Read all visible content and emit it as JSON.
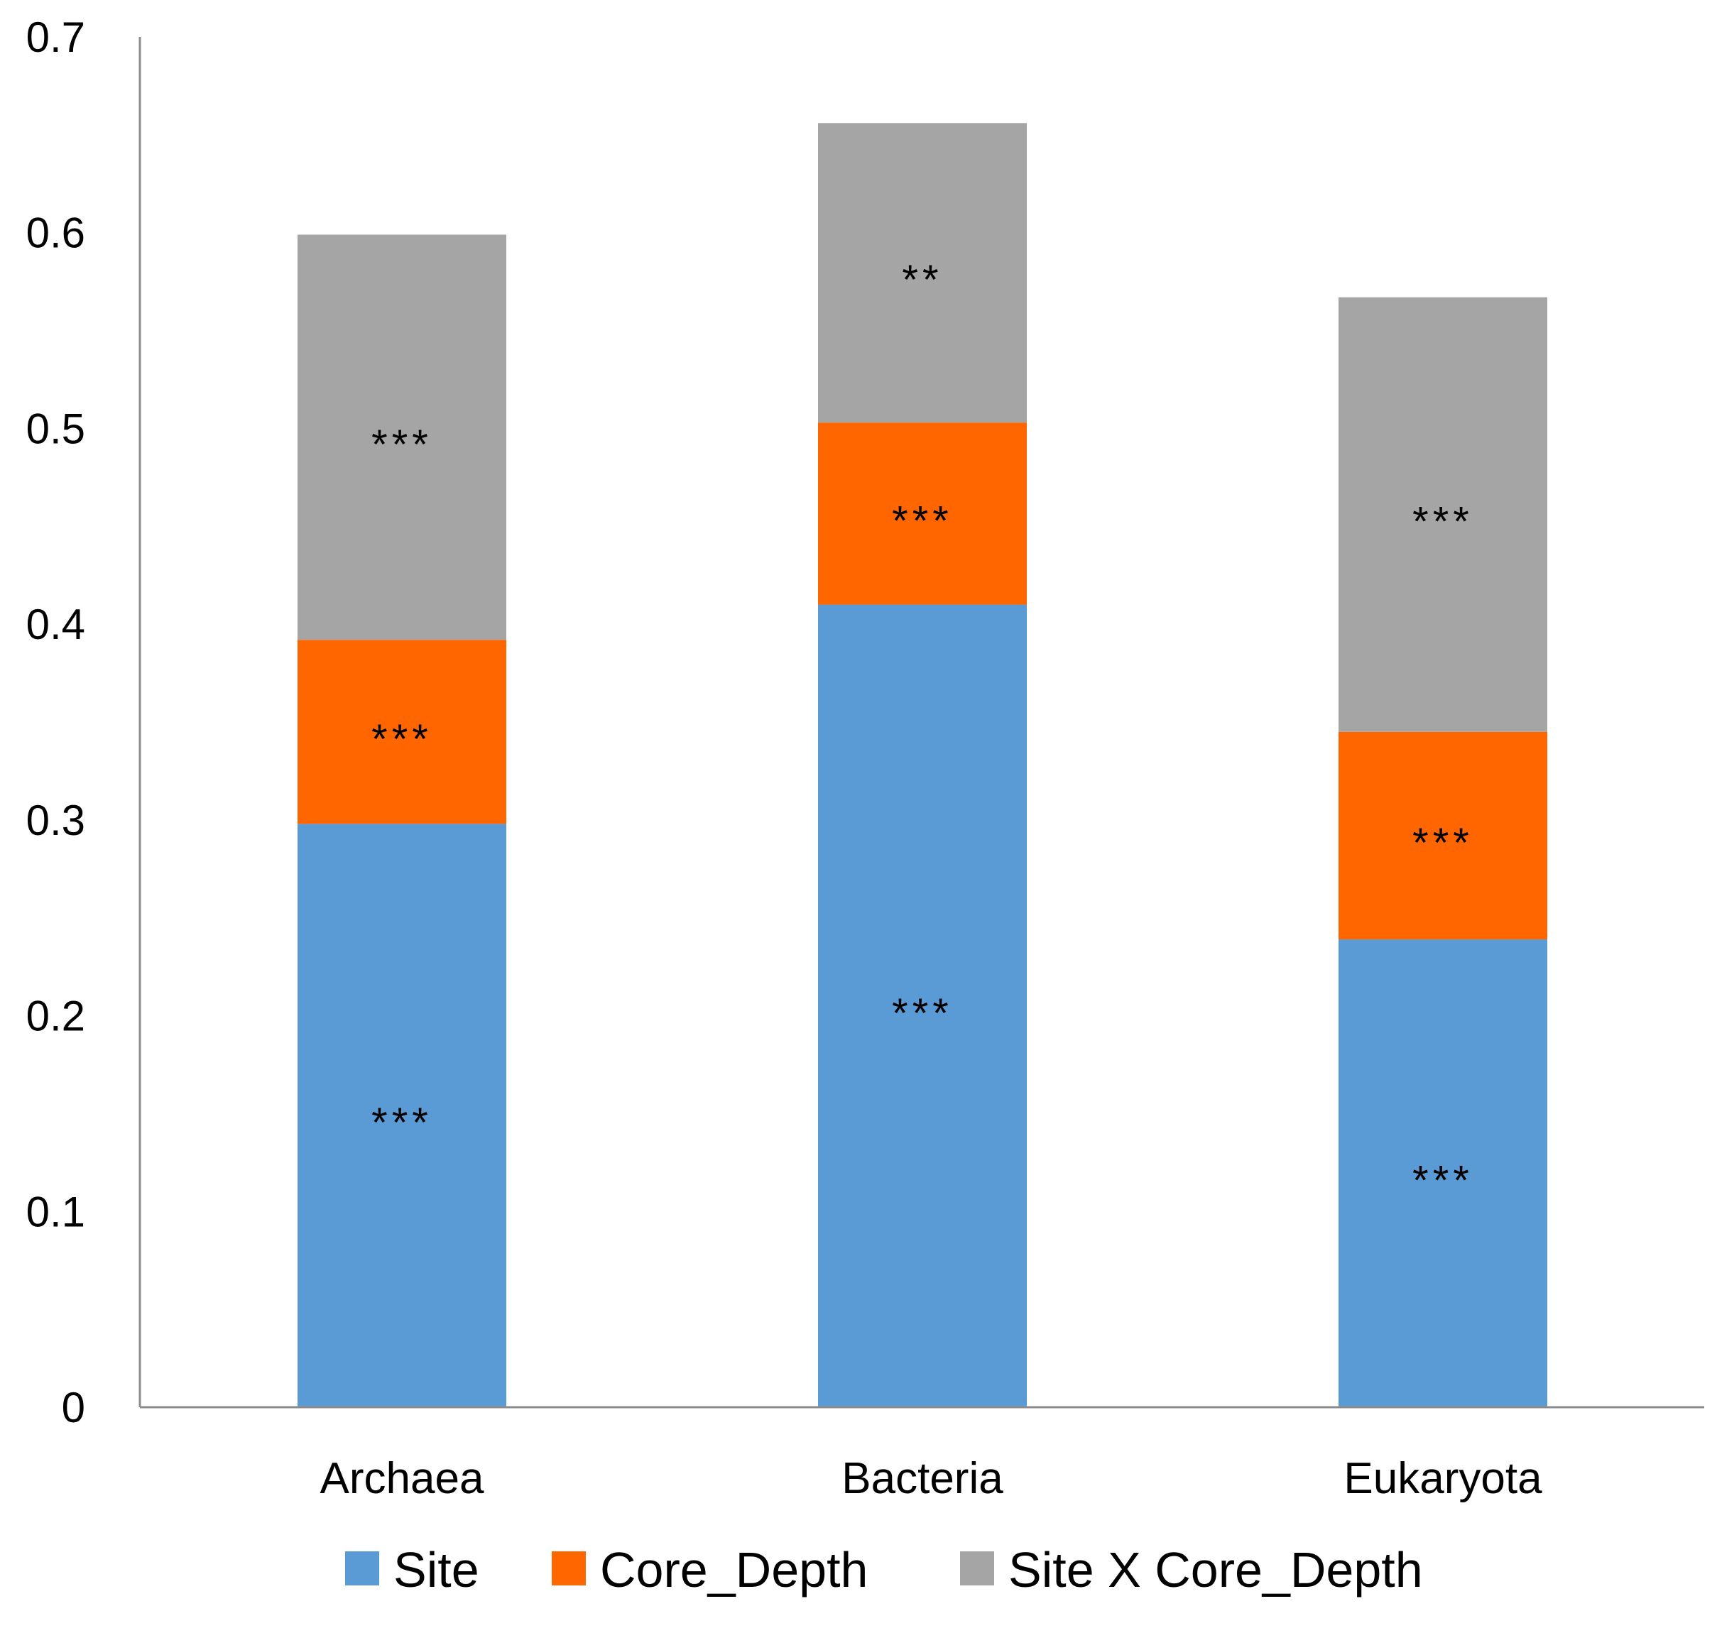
{
  "chart_data": {
    "type": "bar",
    "stacked": true,
    "categories": [
      "Archaea",
      "Bacteria",
      "Eukaryota"
    ],
    "series": [
      {
        "name": "Site",
        "color": "#5B9BD5",
        "values": [
          0.298,
          0.41,
          0.239
        ],
        "annotations": [
          "***",
          "***",
          "***"
        ]
      },
      {
        "name": "Core_Depth",
        "color": "#FF6600",
        "values": [
          0.094,
          0.093,
          0.106
        ],
        "annotations": [
          "***",
          "***",
          "***"
        ]
      },
      {
        "name": "Site X Core_Depth",
        "color": "#A5A5A5",
        "values": [
          0.207,
          0.153,
          0.222
        ],
        "annotations": [
          "***",
          "**",
          "***"
        ]
      }
    ],
    "ylim": [
      0,
      0.7
    ],
    "yticks": [
      "0",
      "0.1",
      "0.2",
      "0.3",
      "0.4",
      "0.5",
      "0.6",
      "0.7"
    ],
    "title": "",
    "xlabel": "",
    "ylabel": "",
    "grid": false,
    "legend_position": "bottom",
    "axis_color": "#8C8C8C"
  }
}
